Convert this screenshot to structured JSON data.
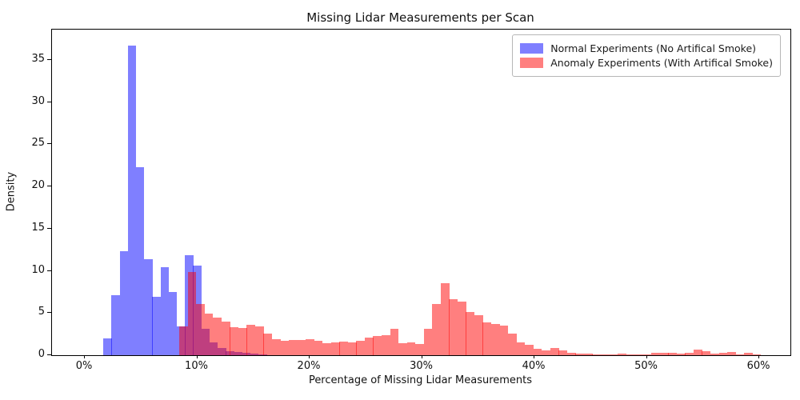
{
  "figure": {
    "title": "Missing Lidar Measurements per Scan",
    "x_axis_label": "Percentage of Missing Lidar Measurements",
    "y_axis_label": "Density"
  },
  "legend": {
    "items": [
      {
        "label": "Normal Experiments (No Artifical Smoke)",
        "swatch_color": "#7f7fff"
      },
      {
        "label": "Anomaly Experiments (With Artifical Smoke)",
        "swatch_color": "#ff7f7f"
      }
    ]
  },
  "colors": {
    "normal_fill": "rgba(0,0,255,0.5)",
    "anomaly_fill": "rgba(255,0,0,0.5)",
    "overlap_rendered": "#bf3f7f",
    "axis": "#000000",
    "text": "#111111"
  },
  "chart_data": {
    "type": "bar",
    "subtype": "overlaid-histogram",
    "title": "Missing Lidar Measurements per Scan",
    "xlabel": "Percentage of Missing Lidar Measurements",
    "ylabel": "Density",
    "grid": false,
    "legend_position": "upper right",
    "xlim_pct": [
      -2.92,
      62.77
    ],
    "ylim": [
      0,
      38.6
    ],
    "x_ticks": [
      {
        "value": 0,
        "label": "0%"
      },
      {
        "value": 10,
        "label": "10%"
      },
      {
        "value": 20,
        "label": "20%"
      },
      {
        "value": 30,
        "label": "30%"
      },
      {
        "value": 40,
        "label": "40%"
      },
      {
        "value": 50,
        "label": "50%"
      },
      {
        "value": 60,
        "label": "60%"
      }
    ],
    "y_ticks": [
      {
        "value": 0,
        "label": "0"
      },
      {
        "value": 5,
        "label": "5"
      },
      {
        "value": 10,
        "label": "10"
      },
      {
        "value": 15,
        "label": "15"
      },
      {
        "value": 20,
        "label": "20"
      },
      {
        "value": 25,
        "label": "25"
      },
      {
        "value": 30,
        "label": "30"
      },
      {
        "value": 35,
        "label": "35"
      }
    ],
    "series": [
      {
        "name": "Normal Experiments (No Artifical Smoke)",
        "fill": "rgba(0,0,255,0.5)",
        "bin_start_pct": 1.64,
        "bin_width_pct": 0.727,
        "densities": [
          2.0,
          7.1,
          12.3,
          36.7,
          22.3,
          11.4,
          6.9,
          10.4,
          7.5,
          3.4,
          11.9,
          10.6,
          3.1,
          1.5,
          0.9,
          0.5,
          0.35,
          0.25,
          0.15,
          0.1
        ]
      },
      {
        "name": "Anomaly Experiments (With Artifical Smoke)",
        "fill": "rgba(255,0,0,0.5)",
        "bin_start_pct": 8.4,
        "bin_width_pct": 0.75,
        "densities": [
          3.4,
          9.9,
          6.1,
          4.9,
          4.5,
          4.0,
          3.3,
          3.2,
          3.6,
          3.4,
          2.6,
          1.9,
          1.7,
          1.8,
          1.8,
          1.9,
          1.7,
          1.4,
          1.5,
          1.6,
          1.5,
          1.7,
          2.1,
          2.3,
          2.4,
          3.1,
          1.4,
          1.5,
          1.3,
          3.1,
          6.1,
          8.5,
          6.6,
          6.4,
          5.1,
          4.7,
          3.9,
          3.7,
          3.5,
          2.6,
          1.5,
          1.2,
          0.75,
          0.6,
          0.9,
          0.55,
          0.3,
          0.15,
          0.2,
          0.1,
          0.05,
          0.1,
          0.2,
          0.1,
          0.05,
          0.05,
          0.25,
          0.3,
          0.25,
          0.15,
          0.3,
          0.65,
          0.5,
          0.2,
          0.25,
          0.35,
          0.1,
          0.3,
          0.05
        ]
      }
    ]
  }
}
